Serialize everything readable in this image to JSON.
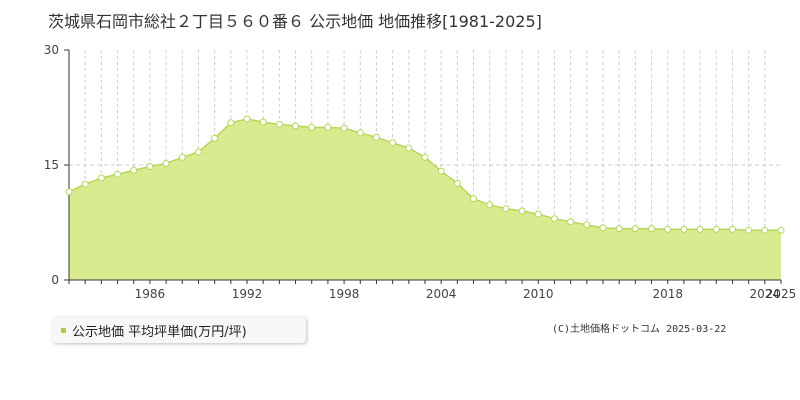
{
  "page": {
    "title": "茨城県石岡市総社２丁目５６０番６ 公示地価 地価推移[1981-2025]"
  },
  "legend": {
    "label": "公示地価 平均坪単価(万円/坪)",
    "color": "#a8cf3c"
  },
  "copyright": "(C)土地価格ドットコム 2025-03-22",
  "colors": {
    "area_fill": "#d9eb8f",
    "area_line": "#b5d65a",
    "point_fill": "#ffffff",
    "grid_dash": "#cccccc",
    "axis": "#333333"
  },
  "chart_data": {
    "type": "area",
    "title": "",
    "xlabel": "",
    "ylabel": "",
    "xlim": [
      1981,
      2025
    ],
    "ylim": [
      0,
      30
    ],
    "yticks": [
      0,
      15,
      30
    ],
    "xticks": [
      1986,
      1992,
      1998,
      2004,
      2010,
      2018,
      2024,
      2025
    ],
    "grid": true,
    "series": [
      {
        "name": "公示地価 平均坪単価(万円/坪)",
        "x": [
          1981,
          1982,
          1983,
          1984,
          1985,
          1986,
          1987,
          1988,
          1989,
          1990,
          1991,
          1992,
          1993,
          1994,
          1995,
          1996,
          1997,
          1998,
          1999,
          2000,
          2001,
          2002,
          2003,
          2004,
          2005,
          2006,
          2007,
          2008,
          2009,
          2010,
          2011,
          2012,
          2013,
          2014,
          2015,
          2016,
          2017,
          2018,
          2019,
          2020,
          2021,
          2022,
          2023,
          2024,
          2025
        ],
        "values": [
          11.5,
          12.5,
          13.3,
          13.8,
          14.3,
          14.8,
          15.2,
          16.0,
          16.7,
          18.5,
          20.5,
          21.0,
          20.6,
          20.3,
          20.1,
          19.9,
          19.9,
          19.8,
          19.2,
          18.6,
          17.9,
          17.2,
          16.0,
          14.2,
          12.6,
          10.6,
          9.8,
          9.3,
          9.0,
          8.6,
          8.0,
          7.6,
          7.2,
          6.8,
          6.7,
          6.7,
          6.7,
          6.6,
          6.6,
          6.6,
          6.6,
          6.6,
          6.5,
          6.5,
          6.5
        ]
      }
    ]
  }
}
